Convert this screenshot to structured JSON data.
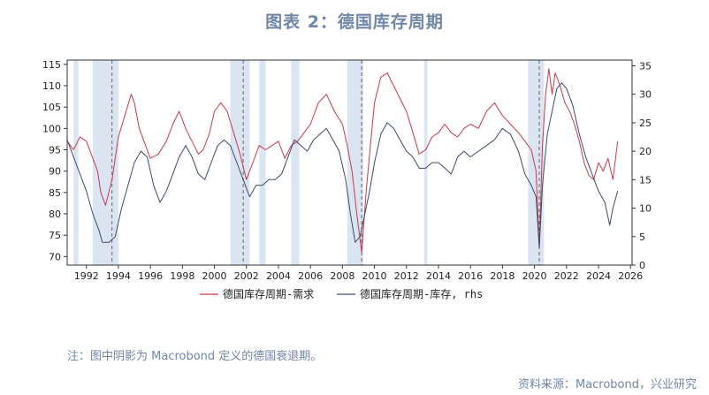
{
  "header": {
    "title": "图表 2：德国库存周期"
  },
  "footer": {
    "note": "注：图中阴影为 Macrobond 定义的德国衰退期。",
    "source": "资料来源：Macrobond，兴业研究"
  },
  "colors": {
    "demand": "#c8384a",
    "inventory": "#3c4a6a",
    "recession": "#dbe5f2",
    "dash": "#666666"
  },
  "chart_data": {
    "type": "line",
    "title": "图表 2：德国库存周期",
    "xlabel": "",
    "ylabel": "",
    "x_ticks": [
      "1992",
      "1994",
      "1996",
      "1998",
      "2000",
      "2002",
      "2004",
      "2006",
      "2008",
      "2010",
      "2012",
      "2014",
      "2016",
      "2018",
      "2020",
      "2022",
      "2024",
      "2026"
    ],
    "xlim": [
      1990.8,
      2026.1
    ],
    "ylim_left": [
      68,
      116
    ],
    "ylim_right": [
      0,
      36
    ],
    "left_ticks": [
      70,
      75,
      80,
      85,
      90,
      95,
      100,
      105,
      110,
      115
    ],
    "right_ticks": [
      0,
      5,
      10,
      15,
      20,
      25,
      30,
      35
    ],
    "legend": {
      "position": "bottom-center"
    },
    "recessions": [
      [
        1991.2,
        1991.5
      ],
      [
        1992.4,
        1994.0
      ],
      [
        2001.0,
        2002.2
      ],
      [
        2002.8,
        2003.2
      ],
      [
        2004.8,
        2005.3
      ],
      [
        2008.3,
        2009.3
      ],
      [
        2013.1,
        2013.3
      ],
      [
        2019.6,
        2020.6
      ]
    ],
    "dashed_lines": [
      1993.6,
      2001.8,
      2009.2,
      2020.3
    ],
    "series": [
      {
        "name": "德国库存周期-需求",
        "axis": "left",
        "x": [
          1990.8,
          1991.2,
          1991.6,
          1992.0,
          1992.4,
          1992.7,
          1992.9,
          1993.2,
          1993.6,
          1994.0,
          1994.4,
          1994.8,
          1995.0,
          1995.3,
          1995.7,
          1996.0,
          1996.5,
          1997.0,
          1997.4,
          1997.8,
          1998.2,
          1998.6,
          1999.0,
          1999.3,
          1999.7,
          2000.0,
          2000.4,
          2000.8,
          2001.2,
          2001.6,
          2002.0,
          2002.4,
          2002.8,
          2003.2,
          2003.6,
          2004.0,
          2004.4,
          2004.8,
          2005.2,
          2005.6,
          2006.0,
          2006.5,
          2007.0,
          2007.5,
          2008.0,
          2008.3,
          2008.6,
          2008.9,
          2009.2,
          2009.5,
          2009.8,
          2010.0,
          2010.4,
          2010.8,
          2011.2,
          2011.6,
          2012.0,
          2012.4,
          2012.8,
          2013.2,
          2013.6,
          2014.0,
          2014.4,
          2014.8,
          2015.2,
          2015.6,
          2016.0,
          2016.5,
          2017.0,
          2017.5,
          2018.0,
          2018.5,
          2019.0,
          2019.4,
          2019.8,
          2020.1,
          2020.3,
          2020.5,
          2020.7,
          2020.9,
          2021.1,
          2021.3,
          2021.6,
          2021.9,
          2022.2,
          2022.5,
          2022.8,
          2023.1,
          2023.4,
          2023.7,
          2024.0,
          2024.3,
          2024.6,
          2024.9,
          2025.2
        ],
        "values": [
          97,
          95,
          98,
          97,
          93,
          90,
          85,
          82,
          88,
          98,
          103,
          108,
          106,
          100,
          96,
          93,
          94,
          97,
          101,
          104,
          100,
          97,
          94,
          95,
          99,
          104,
          106,
          104,
          99,
          94,
          88,
          92,
          96,
          95,
          96,
          97,
          93,
          96,
          97,
          99,
          101,
          106,
          108,
          104,
          101,
          96,
          90,
          80,
          71,
          86,
          98,
          106,
          112,
          113,
          110,
          107,
          104,
          99,
          94,
          95,
          98,
          99,
          101,
          99,
          98,
          100,
          101,
          100,
          104,
          106,
          103,
          101,
          99,
          97,
          95,
          90,
          72,
          96,
          108,
          114,
          108,
          113,
          110,
          106,
          104,
          101,
          97,
          92,
          89,
          88,
          92,
          90,
          93,
          88,
          97
        ]
      },
      {
        "name": "德国库存周期-库存, rhs",
        "axis": "right",
        "x": [
          1990.8,
          1991.2,
          1991.6,
          1992.0,
          1992.4,
          1992.8,
          1993.0,
          1993.4,
          1993.8,
          1994.2,
          1994.6,
          1995.0,
          1995.4,
          1995.8,
          1996.2,
          1996.6,
          1997.0,
          1997.4,
          1997.8,
          1998.2,
          1998.6,
          1999.0,
          1999.4,
          1999.8,
          2000.2,
          2000.6,
          2001.0,
          2001.4,
          2001.8,
          2002.2,
          2002.6,
          2003.0,
          2003.4,
          2003.8,
          2004.2,
          2004.6,
          2005.0,
          2005.4,
          2005.8,
          2006.2,
          2006.6,
          2007.0,
          2007.4,
          2007.8,
          2008.2,
          2008.5,
          2008.8,
          2009.1,
          2009.4,
          2009.7,
          2010.0,
          2010.4,
          2010.8,
          2011.2,
          2011.6,
          2012.0,
          2012.4,
          2012.8,
          2013.2,
          2013.6,
          2014.0,
          2014.4,
          2014.8,
          2015.2,
          2015.6,
          2016.0,
          2016.5,
          2017.0,
          2017.5,
          2018.0,
          2018.5,
          2019.0,
          2019.4,
          2019.8,
          2020.1,
          2020.3,
          2020.5,
          2020.8,
          2021.1,
          2021.4,
          2021.7,
          2022.0,
          2022.4,
          2022.8,
          2023.2,
          2023.6,
          2024.0,
          2024.4,
          2024.7,
          2024.9,
          2025.2
        ],
        "values": [
          22,
          19,
          16,
          13,
          9,
          6,
          4,
          4,
          5,
          10,
          14,
          18,
          20,
          19,
          14,
          11,
          13,
          16,
          19,
          21,
          19,
          16,
          15,
          18,
          21,
          22,
          21,
          18,
          15,
          12,
          14,
          14,
          15,
          15,
          16,
          19,
          22,
          21,
          20,
          22,
          23,
          24,
          22,
          20,
          15,
          9,
          4,
          5,
          9,
          13,
          18,
          23,
          25,
          24,
          22,
          20,
          19,
          17,
          17,
          18,
          18,
          17,
          16,
          19,
          20,
          19,
          20,
          21,
          22,
          24,
          23,
          20,
          16,
          14,
          12,
          3,
          14,
          23,
          27,
          31,
          32,
          31,
          28,
          23,
          19,
          16,
          13,
          11,
          7,
          10,
          13
        ]
      }
    ]
  }
}
